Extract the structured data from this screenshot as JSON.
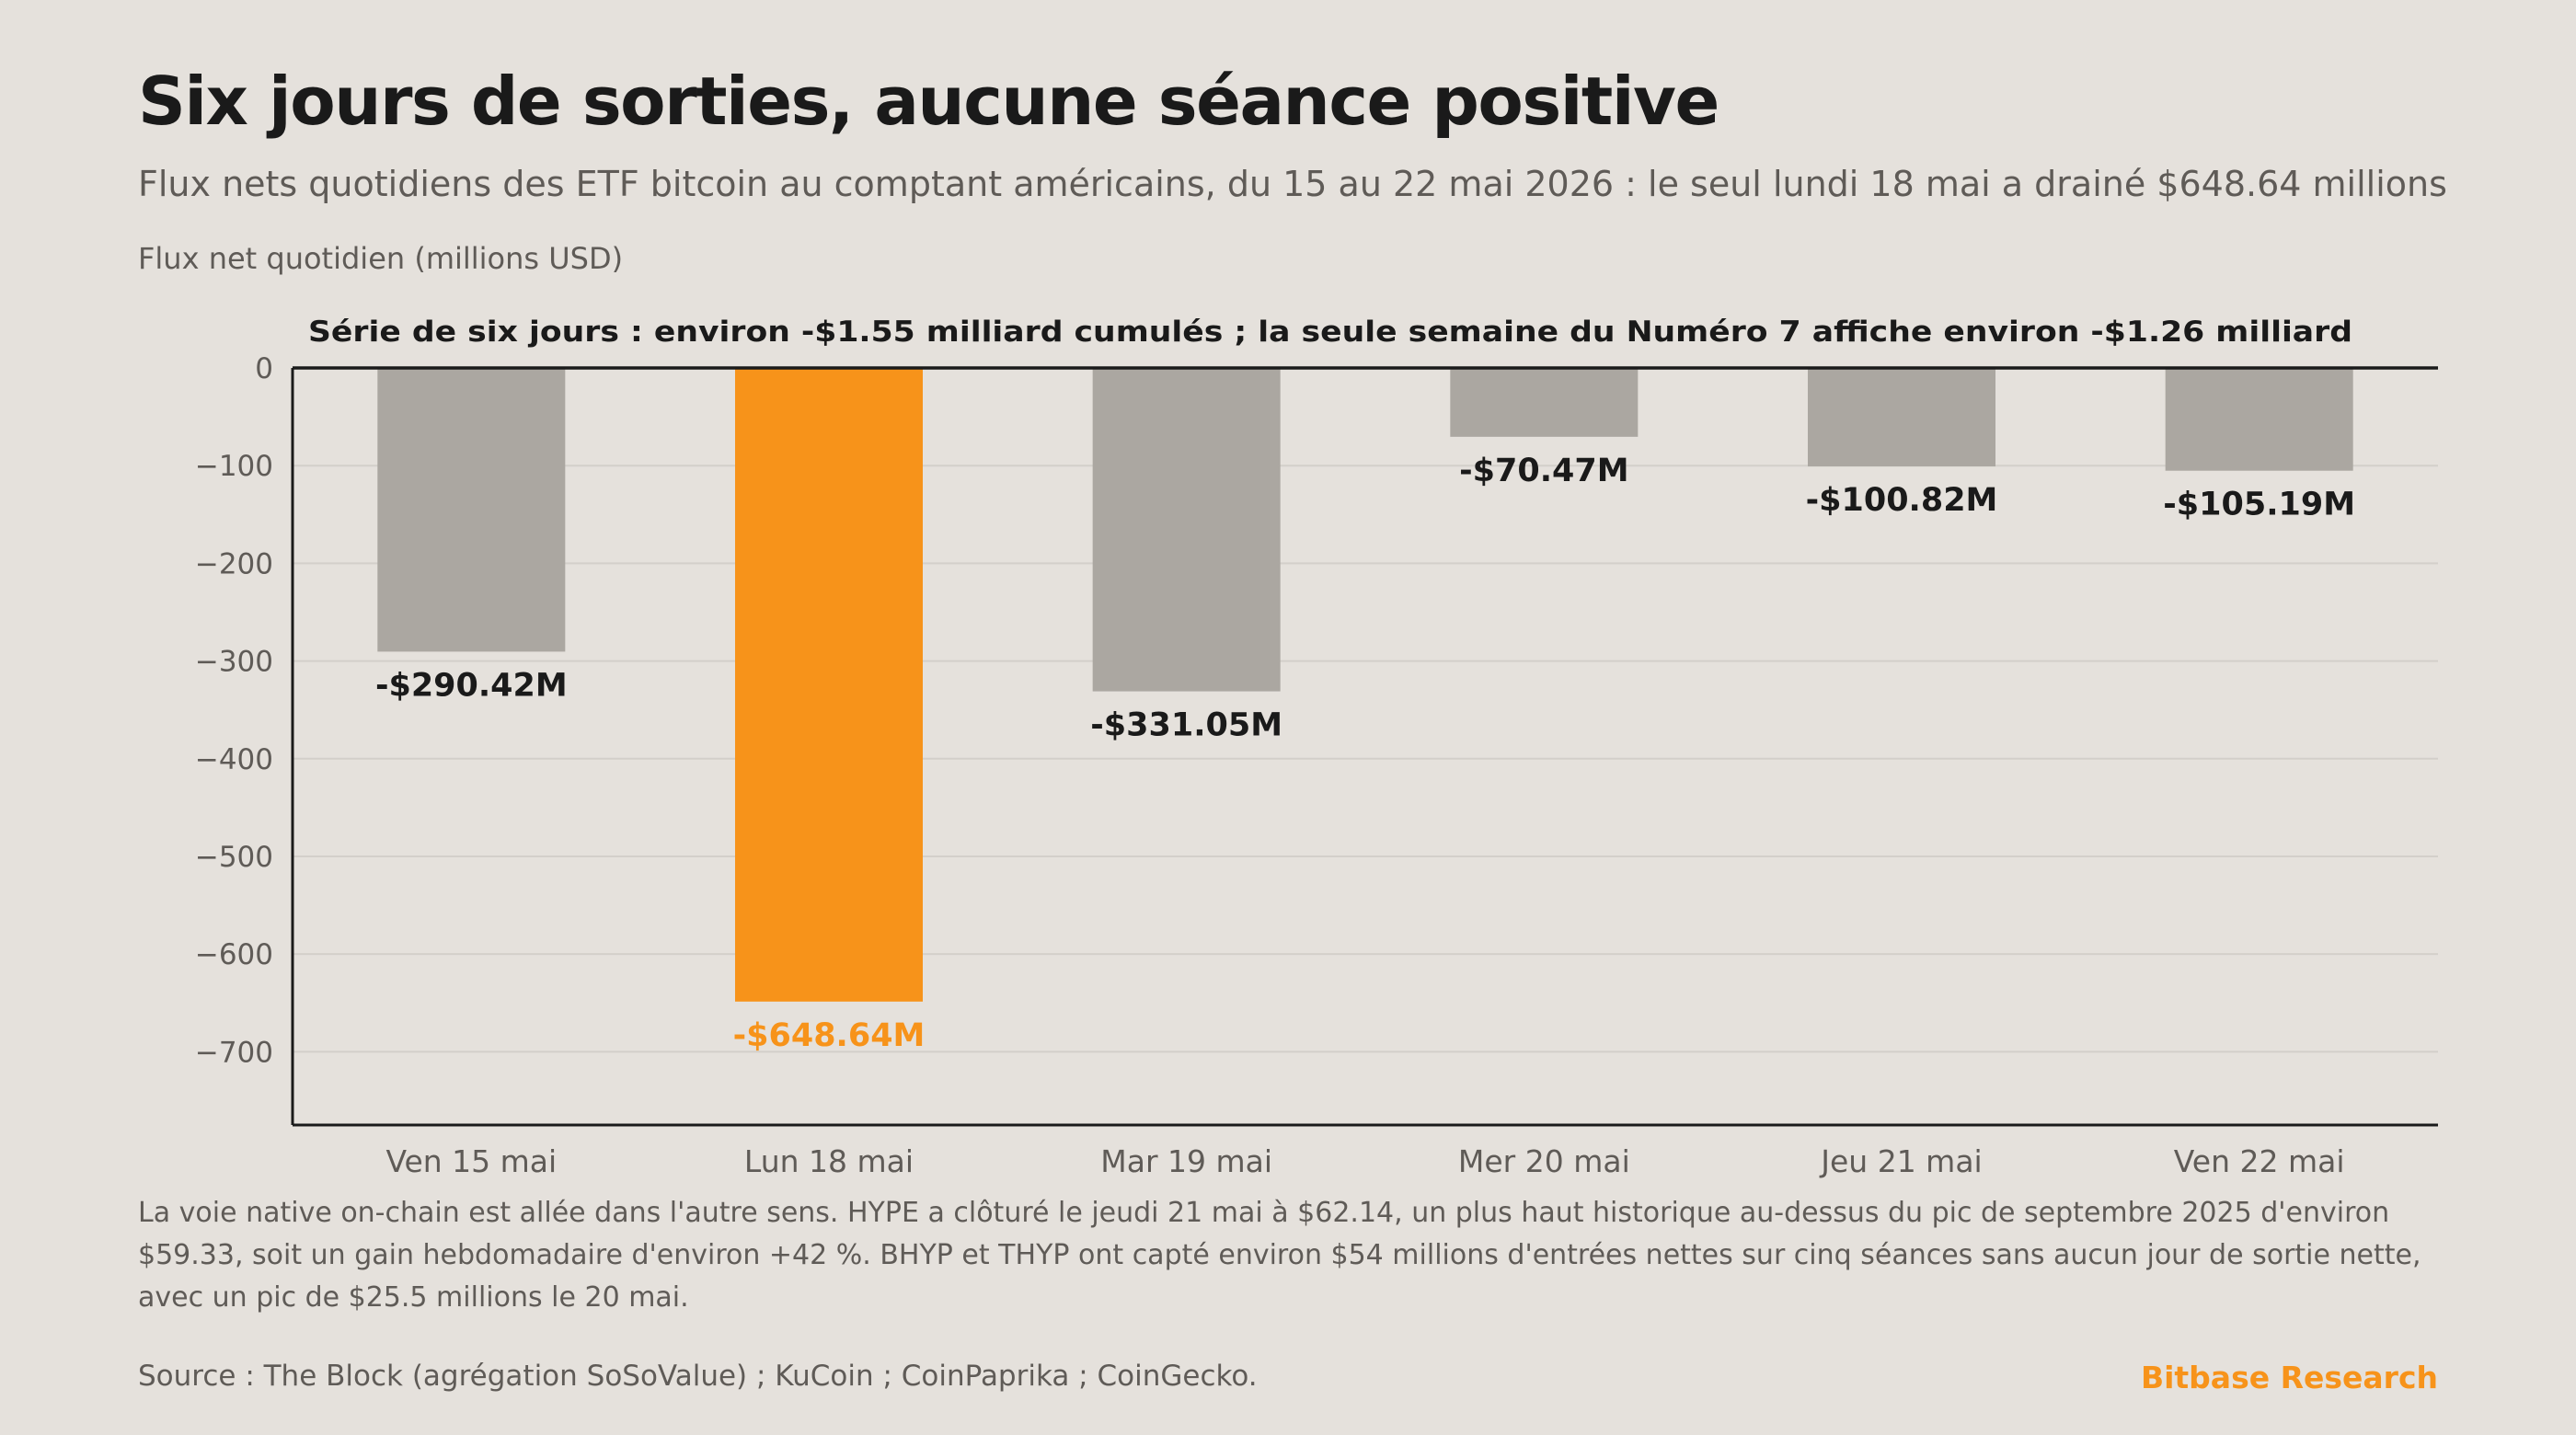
{
  "title": "Six jours de sorties, aucune séance positive",
  "subtitle": "Flux nets quotidiens des ETF bitcoin au comptant américains, du 15 au 22 mai 2026 : le seul lundi 18 mai a drainé $648.64 millions",
  "note": "La voie native on-chain est allée dans l'autre sens. HYPE a clôturé le jeudi 21 mai à $62.14, un plus haut historique au-dessus du pic de septembre 2025 d'environ $59.33, soit un gain hebdomadaire d'environ +42 %. BHYP et THYP ont capté environ $54 millions d'entrées nettes sur cinq séances sans aucun jour de sortie nette, avec un pic de $25.5 millions le 20 mai.",
  "source": "Source : The Block (agrégation SoSoValue) ; KuCoin ; CoinPaprika ; CoinGecko.",
  "brand": "Bitbase Research",
  "colors": {
    "background": "#e5e1dc",
    "bar_default": "#aba7a1",
    "bar_highlight": "#f7931a",
    "text_dark": "#1a1a1a",
    "text_muted": "#5f5b57",
    "grid": "#d3cfca"
  },
  "chart_data": {
    "type": "bar",
    "ylabel": "Flux net quotidien (millions USD)",
    "annotation": "Série de six jours : environ -$1.55 milliard cumulés ; la seule semaine du Numéro 7 affiche environ -$1.26 milliard",
    "categories": [
      "Ven 15 mai",
      "Lun 18 mai",
      "Mar 19 mai",
      "Mer 20 mai",
      "Jeu 21 mai",
      "Ven 22 mai"
    ],
    "values": [
      -290.42,
      -648.64,
      -331.05,
      -70.47,
      -100.82,
      -105.19
    ],
    "value_labels": [
      "-$290.42M",
      "-$648.64M",
      "-$331.05M",
      "-$70.47M",
      "-$100.82M",
      "-$105.19M"
    ],
    "highlight_index": 1,
    "ylim": [
      -775,
      0
    ],
    "yticks": [
      0,
      -100,
      -200,
      -300,
      -400,
      -500,
      -600,
      -700
    ],
    "grid": true
  }
}
